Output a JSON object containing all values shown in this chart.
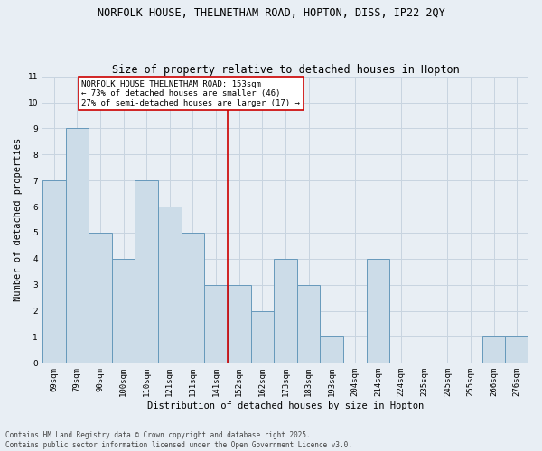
{
  "title1": "NORFOLK HOUSE, THELNETHAM ROAD, HOPTON, DISS, IP22 2QY",
  "title2": "Size of property relative to detached houses in Hopton",
  "xlabel": "Distribution of detached houses by size in Hopton",
  "ylabel": "Number of detached properties",
  "categories": [
    "69sqm",
    "79sqm",
    "90sqm",
    "100sqm",
    "110sqm",
    "121sqm",
    "131sqm",
    "141sqm",
    "152sqm",
    "162sqm",
    "173sqm",
    "183sqm",
    "193sqm",
    "204sqm",
    "214sqm",
    "224sqm",
    "235sqm",
    "245sqm",
    "255sqm",
    "266sqm",
    "276sqm"
  ],
  "values": [
    7,
    9,
    5,
    4,
    7,
    6,
    5,
    3,
    3,
    2,
    4,
    3,
    1,
    0,
    4,
    0,
    0,
    0,
    0,
    1,
    1
  ],
  "bar_color": "#ccdce8",
  "bar_edge_color": "#6699bb",
  "annotation_text": "NORFOLK HOUSE THELNETHAM ROAD: 153sqm\n← 73% of detached houses are smaller (46)\n27% of semi-detached houses are larger (17) →",
  "annotation_box_color": "#ffffff",
  "annotation_box_edge": "#cc0000",
  "vline_color": "#cc0000",
  "vline_x_index": 8,
  "ylim": [
    0,
    11
  ],
  "yticks": [
    0,
    1,
    2,
    3,
    4,
    5,
    6,
    7,
    8,
    9,
    10,
    11
  ],
  "grid_color": "#c8d4e0",
  "background_color": "#e8eef4",
  "footer": "Contains HM Land Registry data © Crown copyright and database right 2025.\nContains public sector information licensed under the Open Government Licence v3.0.",
  "title1_fontsize": 8.5,
  "title2_fontsize": 8.5,
  "xlabel_fontsize": 7.5,
  "ylabel_fontsize": 7.5,
  "tick_fontsize": 6.5,
  "annotation_fontsize": 6.5,
  "footer_fontsize": 5.5
}
